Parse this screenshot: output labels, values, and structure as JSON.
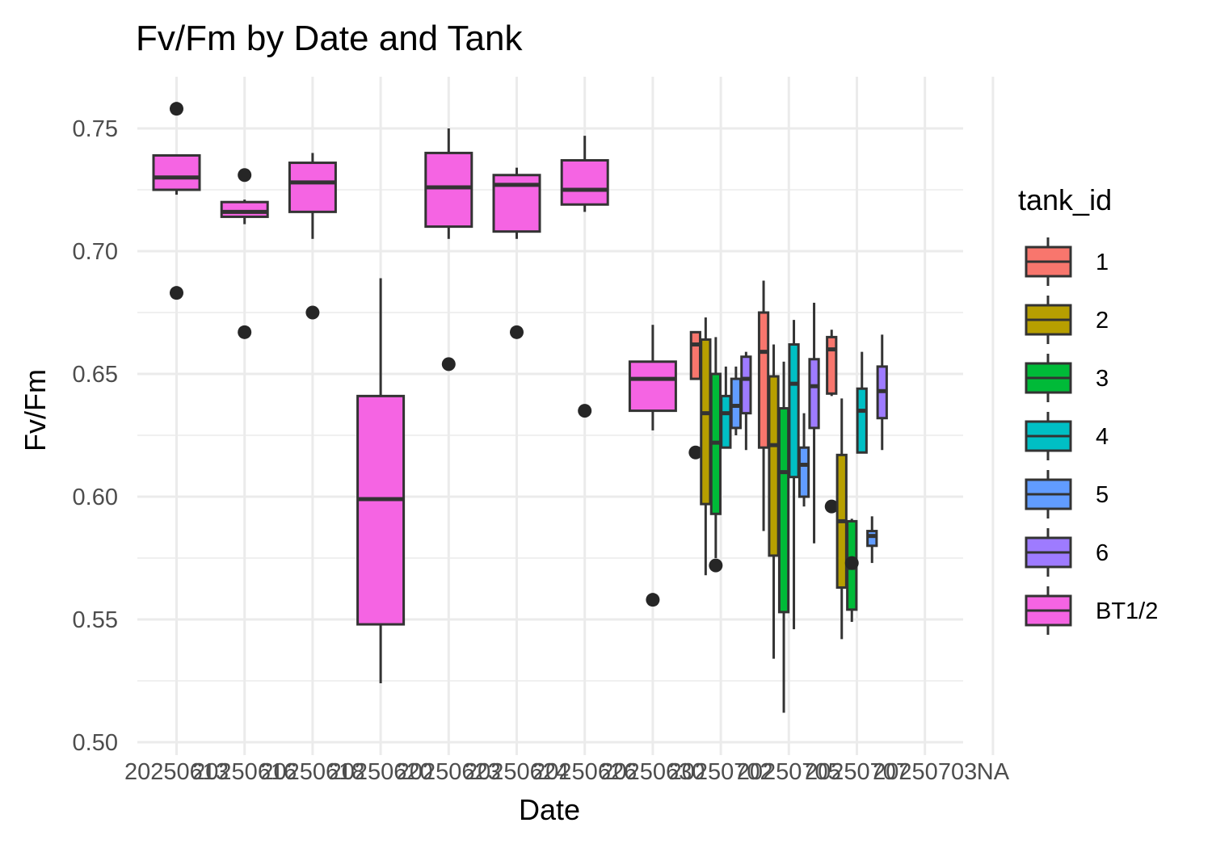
{
  "chart_data": {
    "type": "boxplot",
    "title": "Fv/Fm by Date and Tank",
    "xlabel": "Date",
    "ylabel": "Fv/Fm",
    "ylim": [
      0.5,
      0.765
    ],
    "yticks": [
      "0.50",
      "0.55",
      "0.60",
      "0.65",
      "0.70",
      "0.75"
    ],
    "grid": true,
    "legend": {
      "title": "tank_id",
      "position": "right"
    },
    "categories": [
      "20250613",
      "20250616",
      "20250618",
      "20250620",
      "20250623",
      "20250624",
      "20250626",
      "20250630",
      "20250702",
      "20250705",
      "20250707",
      "20250703",
      "NA"
    ],
    "series": [
      {
        "name": "1",
        "color": "#F8766D"
      },
      {
        "name": "2",
        "color": "#B79F00"
      },
      {
        "name": "3",
        "color": "#00BA38"
      },
      {
        "name": "4",
        "color": "#00BFC4"
      },
      {
        "name": "5",
        "color": "#619CFF"
      },
      {
        "name": "6",
        "color": "#9E7BFF"
      },
      {
        "name": "BT1/2",
        "color": "#F564E3"
      }
    ],
    "boxes": [
      {
        "category": "20250613",
        "series": "BT1/2",
        "whisker_low": 0.723,
        "q1": 0.725,
        "median": 0.73,
        "q3": 0.739,
        "whisker_high": 0.739,
        "outliers": [
          0.758,
          0.683
        ]
      },
      {
        "category": "20250616",
        "series": "BT1/2",
        "whisker_low": 0.711,
        "q1": 0.714,
        "median": 0.716,
        "q3": 0.72,
        "whisker_high": 0.721,
        "outliers": [
          0.731,
          0.667
        ]
      },
      {
        "category": "20250618",
        "series": "BT1/2",
        "whisker_low": 0.705,
        "q1": 0.716,
        "median": 0.728,
        "q3": 0.736,
        "whisker_high": 0.74,
        "outliers": [
          0.675
        ]
      },
      {
        "category": "20250620",
        "series": "BT1/2",
        "whisker_low": 0.524,
        "q1": 0.548,
        "median": 0.599,
        "q3": 0.641,
        "whisker_high": 0.689,
        "outliers": []
      },
      {
        "category": "20250623",
        "series": "BT1/2",
        "whisker_low": 0.705,
        "q1": 0.71,
        "median": 0.726,
        "q3": 0.74,
        "whisker_high": 0.75,
        "outliers": [
          0.654
        ]
      },
      {
        "category": "20250624",
        "series": "BT1/2",
        "whisker_low": 0.705,
        "q1": 0.708,
        "median": 0.727,
        "q3": 0.731,
        "whisker_high": 0.734,
        "outliers": [
          0.667
        ]
      },
      {
        "category": "20250626",
        "series": "BT1/2",
        "whisker_low": 0.716,
        "q1": 0.719,
        "median": 0.725,
        "q3": 0.737,
        "whisker_high": 0.747,
        "outliers": [
          0.635
        ]
      },
      {
        "category": "20250630",
        "series": "BT1/2",
        "whisker_low": 0.627,
        "q1": 0.635,
        "median": 0.648,
        "q3": 0.655,
        "whisker_high": 0.67,
        "outliers": [
          0.558
        ]
      },
      {
        "category": "20250702",
        "series": "1",
        "whisker_low": 0.648,
        "q1": 0.648,
        "median": 0.662,
        "q3": 0.667,
        "whisker_high": 0.667,
        "outliers": [
          0.618
        ]
      },
      {
        "category": "20250702",
        "series": "2",
        "whisker_low": 0.568,
        "q1": 0.597,
        "median": 0.634,
        "q3": 0.664,
        "whisker_high": 0.673,
        "outliers": []
      },
      {
        "category": "20250702",
        "series": "3",
        "whisker_low": 0.575,
        "q1": 0.593,
        "median": 0.622,
        "q3": 0.65,
        "whisker_high": 0.665,
        "outliers": [
          0.572
        ]
      },
      {
        "category": "20250702",
        "series": "4",
        "whisker_low": 0.62,
        "q1": 0.62,
        "median": 0.634,
        "q3": 0.641,
        "whisker_high": 0.653,
        "outliers": []
      },
      {
        "category": "20250702",
        "series": "5",
        "whisker_low": 0.625,
        "q1": 0.628,
        "median": 0.637,
        "q3": 0.648,
        "whisker_high": 0.653,
        "outliers": []
      },
      {
        "category": "20250702",
        "series": "6",
        "whisker_low": 0.619,
        "q1": 0.634,
        "median": 0.648,
        "q3": 0.657,
        "whisker_high": 0.659,
        "outliers": []
      },
      {
        "category": "20250705",
        "series": "1",
        "whisker_low": 0.586,
        "q1": 0.62,
        "median": 0.659,
        "q3": 0.675,
        "whisker_high": 0.688,
        "outliers": []
      },
      {
        "category": "20250705",
        "series": "2",
        "whisker_low": 0.534,
        "q1": 0.576,
        "median": 0.621,
        "q3": 0.649,
        "whisker_high": 0.662,
        "outliers": []
      },
      {
        "category": "20250705",
        "series": "3",
        "whisker_low": 0.512,
        "q1": 0.553,
        "median": 0.61,
        "q3": 0.636,
        "whisker_high": 0.655,
        "outliers": []
      },
      {
        "category": "20250705",
        "series": "4",
        "whisker_low": 0.546,
        "q1": 0.608,
        "median": 0.646,
        "q3": 0.662,
        "whisker_high": 0.672,
        "outliers": []
      },
      {
        "category": "20250705",
        "series": "5",
        "whisker_low": 0.596,
        "q1": 0.6,
        "median": 0.613,
        "q3": 0.62,
        "whisker_high": 0.634,
        "outliers": []
      },
      {
        "category": "20250705",
        "series": "6",
        "whisker_low": 0.581,
        "q1": 0.628,
        "median": 0.645,
        "q3": 0.656,
        "whisker_high": 0.679,
        "outliers": []
      },
      {
        "category": "20250707",
        "series": "1",
        "whisker_low": 0.641,
        "q1": 0.642,
        "median": 0.66,
        "q3": 0.665,
        "whisker_high": 0.668,
        "outliers": [
          0.596
        ]
      },
      {
        "category": "20250707",
        "series": "2",
        "whisker_low": 0.542,
        "q1": 0.563,
        "median": 0.59,
        "q3": 0.617,
        "whisker_high": 0.64,
        "outliers": []
      },
      {
        "category": "20250707",
        "series": "3",
        "whisker_low": 0.549,
        "q1": 0.554,
        "median": 0.571,
        "q3": 0.59,
        "whisker_high": 0.591,
        "outliers": [
          0.573
        ]
      },
      {
        "category": "20250707",
        "series": "4",
        "whisker_low": 0.618,
        "q1": 0.618,
        "median": 0.635,
        "q3": 0.644,
        "whisker_high": 0.659,
        "outliers": []
      },
      {
        "category": "20250707",
        "series": "5",
        "whisker_low": 0.573,
        "q1": 0.58,
        "median": 0.584,
        "q3": 0.586,
        "whisker_high": 0.592,
        "outliers": []
      },
      {
        "category": "20250707",
        "series": "6",
        "whisker_low": 0.619,
        "q1": 0.632,
        "median": 0.643,
        "q3": 0.653,
        "whisker_high": 0.666,
        "outliers": []
      }
    ]
  }
}
